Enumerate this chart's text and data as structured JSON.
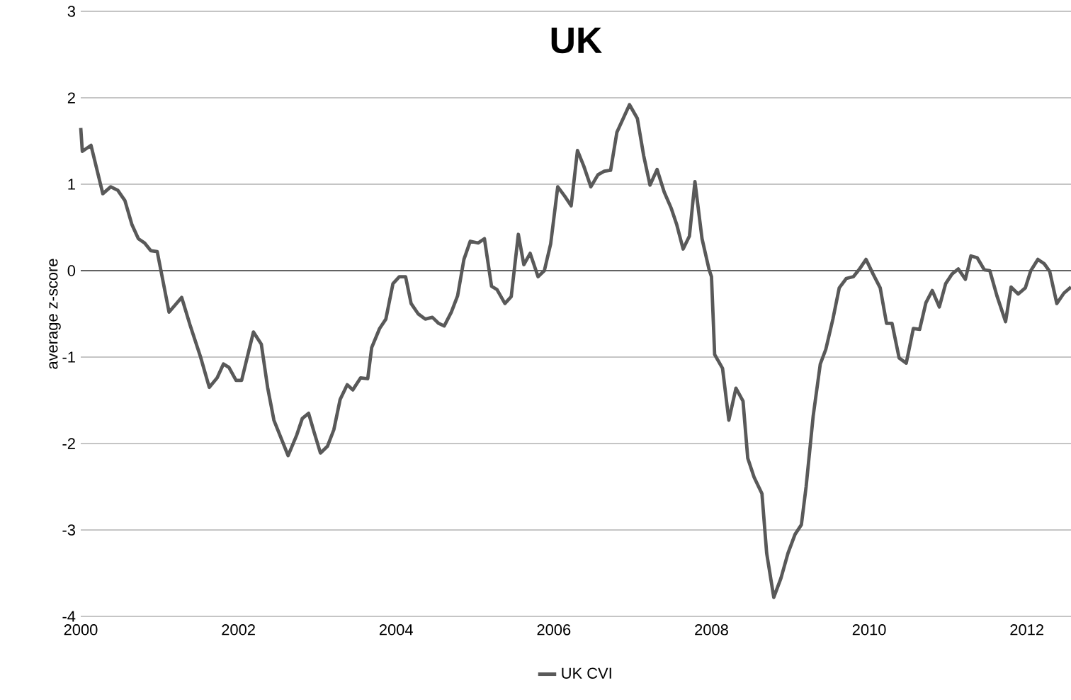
{
  "chart_data": {
    "type": "line",
    "title": "UK",
    "ylabel": "average z-score",
    "x": [
      2000.0,
      2000.02,
      2000.13,
      2000.28,
      2000.38,
      2000.47,
      2000.56,
      2000.65,
      2000.73,
      2000.81,
      2000.89,
      2000.97,
      2001.12,
      2001.28,
      2001.39,
      2001.52,
      2001.63,
      2001.73,
      2001.81,
      2001.88,
      2001.97,
      2002.04,
      2002.19,
      2002.29,
      2002.37,
      2002.45,
      2002.63,
      2002.74,
      2002.81,
      2002.89,
      2002.96,
      2003.04,
      2003.13,
      2003.21,
      2003.29,
      2003.38,
      2003.45,
      2003.55,
      2003.64,
      2003.69,
      2003.79,
      2003.87,
      2003.96,
      2004.04,
      2004.12,
      2004.19,
      2004.28,
      2004.37,
      2004.46,
      2004.54,
      2004.61,
      2004.7,
      2004.78,
      2004.86,
      2004.94,
      2005.04,
      2005.12,
      2005.21,
      2005.28,
      2005.38,
      2005.46,
      2005.55,
      2005.62,
      2005.7,
      2005.8,
      2005.88,
      2005.96,
      2006.05,
      2006.14,
      2006.22,
      2006.3,
      2006.38,
      2006.47,
      2006.56,
      2006.64,
      2006.72,
      2006.8,
      2006.88,
      2006.96,
      2007.06,
      2007.14,
      2007.22,
      2007.31,
      2007.4,
      2007.49,
      2007.56,
      2007.64,
      2007.72,
      2007.79,
      2007.88,
      2007.97,
      2008.0,
      2008.04,
      2008.14,
      2008.22,
      2008.31,
      2008.4,
      2008.46,
      2008.54,
      2008.64,
      2008.7,
      2008.79,
      2008.88,
      2008.97,
      2009.06,
      2009.14,
      2009.2,
      2009.29,
      2009.38,
      2009.45,
      2009.54,
      2009.62,
      2009.71,
      2009.8,
      2009.87,
      2009.96,
      2010.05,
      2010.14,
      2010.22,
      2010.29,
      2010.38,
      2010.47,
      2010.56,
      2010.64,
      2010.72,
      2010.8,
      2010.89,
      2010.97,
      2011.05,
      2011.13,
      2011.22,
      2011.29,
      2011.37,
      2011.46,
      2011.53,
      2011.62,
      2011.73,
      2011.8,
      2011.89,
      2011.98,
      2012.05,
      2012.14,
      2012.22,
      2012.29,
      2012.38,
      2012.47,
      2012.56
    ],
    "series": [
      {
        "name": "UK CVI",
        "color": "#595959",
        "values": [
          1.65,
          1.38,
          1.45,
          0.89,
          0.97,
          0.93,
          0.81,
          0.53,
          0.37,
          0.32,
          0.23,
          0.22,
          -0.48,
          -0.31,
          -0.64,
          -1.0,
          -1.35,
          -1.24,
          -1.08,
          -1.12,
          -1.27,
          -1.27,
          -0.71,
          -0.85,
          -1.35,
          -1.73,
          -2.14,
          -1.9,
          -1.71,
          -1.65,
          -1.87,
          -2.11,
          -2.03,
          -1.84,
          -1.49,
          -1.32,
          -1.38,
          -1.24,
          -1.25,
          -0.89,
          -0.67,
          -0.56,
          -0.15,
          -0.07,
          -0.07,
          -0.38,
          -0.5,
          -0.56,
          -0.54,
          -0.61,
          -0.64,
          -0.48,
          -0.29,
          0.13,
          0.34,
          0.32,
          0.37,
          -0.18,
          -0.22,
          -0.38,
          -0.3,
          0.42,
          0.07,
          0.2,
          -0.07,
          0.0,
          0.31,
          0.97,
          0.86,
          0.75,
          1.39,
          1.21,
          0.97,
          1.11,
          1.15,
          1.16,
          1.6,
          1.76,
          1.92,
          1.76,
          1.33,
          0.99,
          1.17,
          0.91,
          0.72,
          0.53,
          0.25,
          0.4,
          1.03,
          0.37,
          0.01,
          -0.07,
          -0.97,
          -1.13,
          -1.73,
          -1.36,
          -1.51,
          -2.17,
          -2.39,
          -2.58,
          -3.27,
          -3.78,
          -3.56,
          -3.27,
          -3.05,
          -2.94,
          -2.5,
          -1.68,
          -1.08,
          -0.91,
          -0.56,
          -0.2,
          -0.09,
          -0.07,
          0.01,
          0.13,
          -0.04,
          -0.2,
          -0.61,
          -0.61,
          -1.01,
          -1.07,
          -0.67,
          -0.68,
          -0.37,
          -0.23,
          -0.42,
          -0.15,
          -0.04,
          0.02,
          -0.1,
          0.17,
          0.15,
          0.01,
          0.0,
          -0.29,
          -0.59,
          -0.19,
          -0.27,
          -0.2,
          0.0,
          0.13,
          0.08,
          -0.01,
          -0.38,
          -0.26,
          -0.19
        ]
      }
    ],
    "xlim": [
      2000,
      2012.56
    ],
    "ylim": [
      -4,
      3
    ],
    "xticks": [
      2000,
      2002,
      2004,
      2006,
      2008,
      2010,
      2012
    ],
    "yticks": [
      -4,
      -3,
      -2,
      -1,
      0,
      1,
      2,
      3
    ],
    "grid": "y",
    "legend": "bottom"
  }
}
